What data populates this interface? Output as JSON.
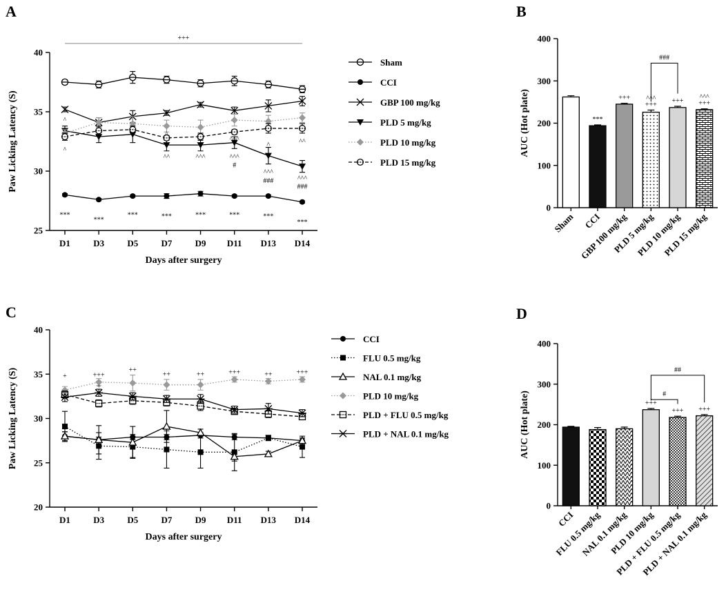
{
  "chart_data": [
    {
      "panel": "A",
      "type": "line",
      "xlabel": "Days after surgery",
      "ylabel": "Paw Licking Latency (S)",
      "ylim": [
        25,
        40
      ],
      "yticks": [
        25,
        30,
        35,
        40
      ],
      "categories": [
        "D1",
        "D3",
        "D5",
        "D7",
        "D9",
        "D11",
        "D13",
        "D14"
      ],
      "top_annotation": "+++",
      "legend_position": "right",
      "series": [
        {
          "name": "Sham",
          "marker": "open-circle-bar",
          "dash": "solid",
          "color": "#000000",
          "values": [
            37.5,
            37.3,
            37.9,
            37.7,
            37.4,
            37.6,
            37.3,
            36.9
          ],
          "errors": [
            0.2,
            0.3,
            0.5,
            0.3,
            0.3,
            0.4,
            0.3,
            0.3
          ]
        },
        {
          "name": "CCI",
          "marker": "filled-circle",
          "dash": "solid",
          "color": "#000000",
          "values": [
            28.0,
            27.6,
            27.9,
            27.9,
            28.1,
            27.9,
            27.9,
            27.4
          ],
          "errors": [
            0.1,
            0.1,
            0.1,
            0.2,
            0.2,
            0.1,
            0.1,
            0.1
          ]
        },
        {
          "name": "GBP 100 mg/kg",
          "marker": "x",
          "dash": "solid",
          "color": "#000000",
          "values": [
            35.2,
            34.1,
            34.6,
            34.9,
            35.6,
            35.1,
            35.5,
            35.9
          ],
          "errors": [
            0.2,
            0.4,
            0.5,
            0.2,
            0.2,
            0.3,
            0.5,
            0.4
          ]
        },
        {
          "name": "PLD 5 mg/kg",
          "marker": "filled-triangle-down",
          "dash": "solid",
          "color": "#000000",
          "values": [
            33.4,
            32.9,
            33.1,
            32.2,
            32.2,
            32.4,
            31.3,
            30.4
          ],
          "errors": [
            0.4,
            0.5,
            0.7,
            0.5,
            0.5,
            0.5,
            0.7,
            0.5
          ]
        },
        {
          "name": "PLD 10 mg/kg",
          "marker": "filled-diamond",
          "dash": "dotted",
          "color": "#999999",
          "values": [
            33.2,
            34.1,
            34.0,
            33.8,
            33.7,
            34.3,
            34.2,
            34.5
          ],
          "errors": [
            0.3,
            0.4,
            0.6,
            0.5,
            0.6,
            0.5,
            0.5,
            0.4
          ]
        },
        {
          "name": "PLD 15 mg/kg",
          "marker": "open-circle-dash",
          "dash": "dashed",
          "color": "#000000",
          "values": [
            32.9,
            33.4,
            33.5,
            32.8,
            32.9,
            33.3,
            33.6,
            33.6
          ],
          "errors": [
            0.3,
            0.4,
            0.3,
            0.2,
            0.3,
            0.2,
            0.4,
            0.4
          ]
        }
      ],
      "annotations": [
        {
          "cat": 0,
          "y": 26.3,
          "text": "***"
        },
        {
          "cat": 1,
          "y": 25.9,
          "text": "***"
        },
        {
          "cat": 2,
          "y": 26.3,
          "text": "***"
        },
        {
          "cat": 3,
          "y": 26.2,
          "text": "***"
        },
        {
          "cat": 4,
          "y": 26.3,
          "text": "***"
        },
        {
          "cat": 5,
          "y": 26.3,
          "text": "***"
        },
        {
          "cat": 6,
          "y": 26.2,
          "text": "***"
        },
        {
          "cat": 7,
          "y": 25.7,
          "text": "***"
        },
        {
          "cat": 0,
          "y": 34.3,
          "text": "^"
        },
        {
          "cat": 0,
          "y": 31.8,
          "text": "^"
        },
        {
          "cat": 3,
          "y": 31.2,
          "text": "^^"
        },
        {
          "cat": 3,
          "y": 33.1,
          "text": "^"
        },
        {
          "cat": 4,
          "y": 31.2,
          "text": "^^^"
        },
        {
          "cat": 5,
          "y": 32.7,
          "text": "^^^"
        },
        {
          "cat": 5,
          "y": 31.2,
          "text": "^^^"
        },
        {
          "cat": 5,
          "y": 30.5,
          "text": "#"
        },
        {
          "cat": 6,
          "y": 32.2,
          "text": "^"
        },
        {
          "cat": 6,
          "y": 29.9,
          "text": "^^^"
        },
        {
          "cat": 6,
          "y": 29.2,
          "text": "###"
        },
        {
          "cat": 7,
          "y": 32.5,
          "text": "^^"
        },
        {
          "cat": 7,
          "y": 29.4,
          "text": "^^^"
        },
        {
          "cat": 7,
          "y": 28.7,
          "text": "###"
        }
      ]
    },
    {
      "panel": "B",
      "type": "bar",
      "ylabel": "AUC (Hot plate)",
      "ylim": [
        0,
        400
      ],
      "yticks": [
        0,
        100,
        200,
        300,
        400
      ],
      "categories": [
        "Sham",
        "CCI",
        "GBP 100 mg/kg",
        "PLD 5 mg/kg",
        "PLD 10 mg/kg",
        "PLD 15 mg/kg"
      ],
      "values": [
        262,
        194,
        245,
        226,
        237,
        232
      ],
      "errors": [
        3,
        2,
        2,
        5,
        3,
        2
      ],
      "fills": [
        "#ffffff",
        "#111111",
        "#9a9a9a",
        "pattern:dots",
        "#d6d6d6",
        "pattern:bricks"
      ],
      "labels": [
        [],
        [
          "***"
        ],
        [
          "+++"
        ],
        [
          "^^^",
          "+++"
        ],
        [
          "+++"
        ],
        [
          "^^^",
          "+++"
        ]
      ],
      "brackets": [
        {
          "from": 3,
          "to": 4,
          "y": 342,
          "text": "###"
        }
      ]
    },
    {
      "panel": "C",
      "type": "line",
      "xlabel": "Days after surgery",
      "ylabel": "Paw Licking Latency (S)",
      "ylim": [
        20,
        40
      ],
      "yticks": [
        20,
        25,
        30,
        35,
        40
      ],
      "categories": [
        "D1",
        "D3",
        "D5",
        "D7",
        "D9",
        "D11",
        "D13",
        "D14"
      ],
      "legend_position": "right",
      "series": [
        {
          "name": "CCI",
          "marker": "filled-circle",
          "dash": "solid",
          "color": "#000000",
          "values": [
            28.0,
            27.6,
            27.9,
            27.9,
            28.1,
            27.9,
            27.8,
            27.5
          ],
          "errors": [
            0.5,
            0.3,
            0.3,
            0.3,
            0.3,
            0.3,
            0.3,
            0.3
          ]
        },
        {
          "name": "FLU 0.5 mg/kg",
          "marker": "filled-square",
          "dash": "dotted",
          "color": "#000000",
          "values": [
            29.1,
            26.9,
            26.8,
            26.5,
            26.2,
            26.2,
            27.8,
            26.8
          ],
          "errors": [
            1.7,
            1.5,
            1.2,
            2.1,
            1.8,
            2.1,
            0.3,
            1.2
          ]
        },
        {
          "name": "NAL 0.1 mg/kg",
          "marker": "open-triangle",
          "dash": "solid",
          "color": "#000000",
          "values": [
            28.0,
            27.6,
            27.3,
            29.1,
            28.4,
            25.7,
            26.0,
            27.5
          ],
          "errors": [
            0.5,
            1.6,
            1.8,
            1.8,
            0.4,
            0.5,
            0.3,
            0.3
          ]
        },
        {
          "name": "PLD 10 mg/kg",
          "marker": "filled-diamond",
          "dash": "dotted",
          "color": "#999999",
          "values": [
            33.2,
            34.1,
            34.0,
            33.8,
            33.8,
            34.4,
            34.2,
            34.4
          ],
          "errors": [
            0.4,
            0.4,
            0.9,
            0.6,
            0.6,
            0.3,
            0.3,
            0.3
          ]
        },
        {
          "name": "PLD + FLU 0.5 mg/kg",
          "marker": "open-square-dot",
          "dash": "dashed",
          "color": "#000000",
          "values": [
            32.7,
            31.7,
            32.0,
            31.8,
            31.4,
            30.8,
            30.5,
            30.2
          ],
          "errors": [
            0.4,
            0.4,
            0.4,
            0.4,
            0.5,
            0.3,
            0.4,
            0.3
          ]
        },
        {
          "name": "PLD + NAL 0.1 mg/kg",
          "marker": "asterisk",
          "dash": "solid",
          "color": "#000000",
          "values": [
            32.4,
            32.9,
            32.5,
            32.2,
            32.2,
            31.0,
            31.1,
            30.6
          ],
          "errors": [
            0.5,
            0.4,
            0.4,
            0.4,
            0.5,
            0.4,
            0.6,
            0.4
          ]
        }
      ],
      "annotations": [
        {
          "cat": 0,
          "y": 34.8,
          "text": "+"
        },
        {
          "cat": 0,
          "y": 32.6,
          "text": "+"
        },
        {
          "cat": 1,
          "y": 34.9,
          "text": "+++"
        },
        {
          "cat": 1,
          "y": 33.6,
          "text": "+"
        },
        {
          "cat": 2,
          "y": 35.5,
          "text": "++"
        },
        {
          "cat": 3,
          "y": 35.0,
          "text": "++"
        },
        {
          "cat": 4,
          "y": 35.0,
          "text": "++"
        },
        {
          "cat": 5,
          "y": 35.2,
          "text": "+++"
        },
        {
          "cat": 6,
          "y": 35.0,
          "text": "++"
        },
        {
          "cat": 7,
          "y": 35.2,
          "text": "+++"
        }
      ]
    },
    {
      "panel": "D",
      "type": "bar",
      "ylabel": "AUC (Hot plate)",
      "ylim": [
        0,
        400
      ],
      "yticks": [
        0,
        100,
        200,
        300,
        400
      ],
      "categories": [
        "CCI",
        "FLU 0.5 mg/kg",
        "NAL 0.1 mg/kg",
        "PLD 10 mg/kg",
        "PLD + FLU 0.5 mg/kg",
        "PLD + NAL 0.1 mg/kg"
      ],
      "values": [
        194,
        188,
        190,
        237,
        218,
        222
      ],
      "errors": [
        2,
        5,
        4,
        3,
        3,
        3
      ],
      "fills": [
        "#111111",
        "pattern:checker",
        "pattern:zigzag",
        "#d6d6d6",
        "pattern:dense-check",
        "pattern:diagonal"
      ],
      "labels": [
        [],
        [],
        [],
        [
          "+++"
        ],
        [
          "+++"
        ],
        [
          "+++"
        ]
      ],
      "brackets": [
        {
          "from": 3,
          "to": 4,
          "y": 262,
          "text": "#"
        },
        {
          "from": 3,
          "to": 5,
          "y": 322,
          "text": "##"
        }
      ]
    }
  ]
}
